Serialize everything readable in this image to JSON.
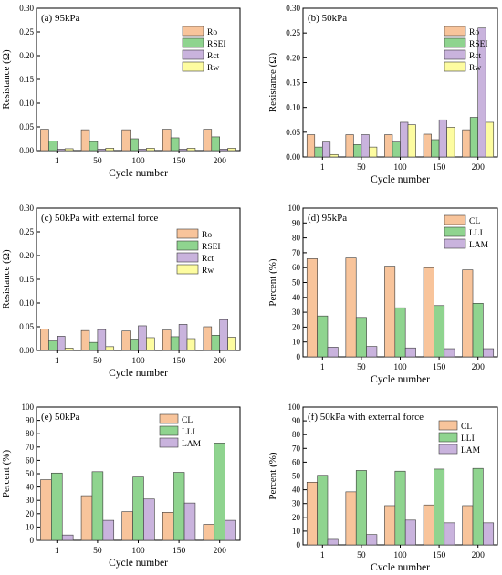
{
  "colors": {
    "Ro": "#f8c49b",
    "RSEI": "#8fd48f",
    "Rct": "#c9b3dd",
    "Rw": "#fdfca0",
    "CL": "#f8c49b",
    "LLI": "#8fd48f",
    "LAM": "#c9b3dd",
    "edge": "#3a3a3a"
  },
  "chart_data": [
    {
      "type": "bar",
      "title": "(a) 95kPa",
      "xlabel": "Cycle number",
      "ylabel": "Resistance (Ω)",
      "categories": [
        "1",
        "50",
        "100",
        "150",
        "200"
      ],
      "ylim": [
        0,
        0.3
      ],
      "yticks": [
        "0.00",
        "0.05",
        "0.10",
        "0.15",
        "0.20",
        "0.25",
        "0.30"
      ],
      "legend": "top-right",
      "series": [
        {
          "name": "Ro",
          "values": [
            0.045,
            0.044,
            0.044,
            0.045,
            0.045
          ]
        },
        {
          "name": "RSEI",
          "values": [
            0.02,
            0.019,
            0.025,
            0.027,
            0.029
          ]
        },
        {
          "name": "Rct",
          "values": [
            0.003,
            0.003,
            0.003,
            0.003,
            0.003
          ]
        },
        {
          "name": "Rw",
          "values": [
            0.004,
            0.005,
            0.005,
            0.005,
            0.005
          ]
        }
      ]
    },
    {
      "type": "bar",
      "title": "(b) 50kPa",
      "xlabel": "Cycle number",
      "ylabel": "Resistance (Ω)",
      "categories": [
        "1",
        "50",
        "100",
        "150",
        "200"
      ],
      "ylim": [
        0,
        0.3
      ],
      "yticks": [
        "0.00",
        "0.05",
        "0.10",
        "0.15",
        "0.20",
        "0.25",
        "0.30"
      ],
      "legend": "top-right",
      "series": [
        {
          "name": "Ro",
          "values": [
            0.045,
            0.045,
            0.045,
            0.046,
            0.055
          ]
        },
        {
          "name": "RSEI",
          "values": [
            0.02,
            0.025,
            0.03,
            0.035,
            0.08
          ]
        },
        {
          "name": "Rct",
          "values": [
            0.03,
            0.045,
            0.07,
            0.075,
            0.26
          ]
        },
        {
          "name": "Rw",
          "values": [
            0.005,
            0.02,
            0.065,
            0.06,
            0.07
          ]
        }
      ]
    },
    {
      "type": "bar",
      "title": "(c) 50kPa with external force",
      "xlabel": "Cycle number",
      "ylabel": "Resistance (Ω)",
      "categories": [
        "1",
        "50",
        "100",
        "150",
        "200"
      ],
      "ylim": [
        0,
        0.3
      ],
      "yticks": [
        "0.00",
        "0.05",
        "0.10",
        "0.15",
        "0.20",
        "0.25",
        "0.30"
      ],
      "legend": "top-right",
      "series": [
        {
          "name": "Ro",
          "values": [
            0.045,
            0.042,
            0.041,
            0.043,
            0.05
          ]
        },
        {
          "name": "RSEI",
          "values": [
            0.02,
            0.017,
            0.024,
            0.029,
            0.032
          ]
        },
        {
          "name": "Rct",
          "values": [
            0.03,
            0.044,
            0.052,
            0.055,
            0.065
          ]
        },
        {
          "name": "Rw",
          "values": [
            0.005,
            0.008,
            0.027,
            0.025,
            0.028
          ]
        }
      ]
    },
    {
      "type": "bar",
      "title": "(d) 95kPa",
      "xlabel": "Cycle number",
      "ylabel": "Percent (%)",
      "categories": [
        "1",
        "50",
        "100",
        "150",
        "200"
      ],
      "ylim": [
        0,
        100
      ],
      "yticks": [
        "0",
        "10",
        "20",
        "30",
        "40",
        "50",
        "60",
        "70",
        "80",
        "90",
        "100"
      ],
      "legend": "top-right",
      "series": [
        {
          "name": "CL",
          "values": [
            66,
            66.5,
            61,
            60,
            58.5
          ]
        },
        {
          "name": "LLI",
          "values": [
            27.5,
            26.5,
            33,
            34.5,
            36
          ]
        },
        {
          "name": "LAM",
          "values": [
            6.5,
            7,
            6,
            5.5,
            5.5
          ]
        }
      ]
    },
    {
      "type": "bar",
      "title": "(e) 50kPa",
      "xlabel": "Cycle number",
      "ylabel": "Percent (%)",
      "categories": [
        "1",
        "50",
        "100",
        "150",
        "200"
      ],
      "ylim": [
        0,
        100
      ],
      "yticks": [
        "0",
        "10",
        "20",
        "30",
        "40",
        "50",
        "60",
        "70",
        "80",
        "90",
        "100"
      ],
      "legend": "top-right",
      "series": [
        {
          "name": "CL",
          "values": [
            45.5,
            33.5,
            21.5,
            21,
            12
          ]
        },
        {
          "name": "LLI",
          "values": [
            50.5,
            51.5,
            47.5,
            51,
            73
          ]
        },
        {
          "name": "LAM",
          "values": [
            4,
            15,
            31,
            28,
            15
          ]
        }
      ]
    },
    {
      "type": "bar",
      "title": "(f) 50kPa with external force",
      "xlabel": "Cycle number",
      "ylabel": "Percent (%)",
      "categories": [
        "1",
        "50",
        "100",
        "150",
        "200"
      ],
      "ylim": [
        0,
        100
      ],
      "yticks": [
        "0",
        "10",
        "20",
        "30",
        "40",
        "50",
        "60",
        "70",
        "80",
        "90",
        "100"
      ],
      "legend": "top-right",
      "series": [
        {
          "name": "CL",
          "values": [
            45.5,
            38.5,
            28.5,
            29,
            28.5
          ]
        },
        {
          "name": "LLI",
          "values": [
            50.5,
            54,
            53.5,
            55,
            55.5
          ]
        },
        {
          "name": "LAM",
          "values": [
            4,
            7.5,
            18,
            16,
            16
          ]
        }
      ]
    }
  ]
}
